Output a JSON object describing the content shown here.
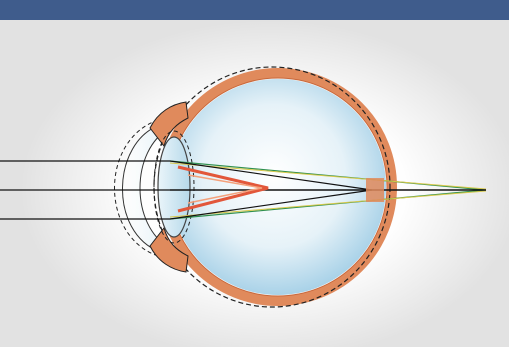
{
  "banner": {
    "background_color": "#3f5c8c",
    "left_text": "",
    "right_text": ""
  },
  "diagram": {
    "subject": "eye-cross-section-light-rays",
    "colors": {
      "background": "#e2e2e2",
      "glow": "#ffffff",
      "sclera": "#e08a5c",
      "sclera_dark": "#c9683b",
      "vitreous": "#cfe6f2",
      "vitreous_edge": "#a9d2e8",
      "lens": "#c4e0ee",
      "ray_black": "#111111",
      "ray_green": "#2f8f4e",
      "ray_yellow": "#d7c84a",
      "focus_red": "#e2573a",
      "outline": "#222222"
    }
  }
}
